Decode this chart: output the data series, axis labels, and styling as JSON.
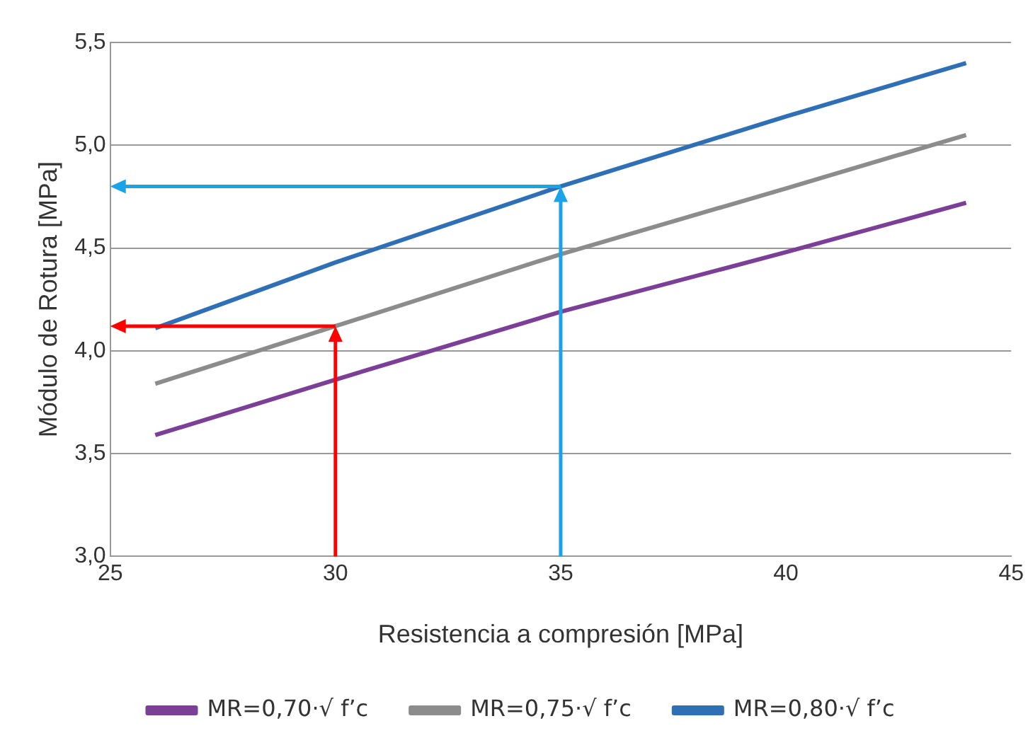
{
  "chart_data": {
    "type": "line",
    "xlabel": "Resistencia a compresión [MPa]",
    "ylabel": "Módulo de Rotura [MPa]",
    "x": [
      26,
      30,
      35,
      40,
      44
    ],
    "series": [
      {
        "name": "MR=0,70·√ f’c",
        "color": "#7b3f98",
        "values": [
          3.59,
          3.86,
          4.19,
          4.48,
          4.72
        ]
      },
      {
        "name": "MR=0,75·√ f’c",
        "color": "#8c8c8c",
        "values": [
          3.84,
          4.12,
          4.47,
          4.79,
          5.05
        ]
      },
      {
        "name": "MR=0,80·√ f’c",
        "color": "#2e6fb5",
        "values": [
          4.11,
          4.43,
          4.8,
          5.14,
          5.4
        ]
      }
    ],
    "xlim": [
      25,
      45
    ],
    "xticks": [
      25,
      30,
      35,
      40,
      45
    ],
    "ylim": [
      3,
      5.5
    ],
    "yticks": [
      {
        "value": 3,
        "label": "3,0"
      },
      {
        "value": 3.5,
        "label": "3,5"
      },
      {
        "value": 4,
        "label": "4,0"
      },
      {
        "value": 4.5,
        "label": "4,5"
      },
      {
        "value": 5,
        "label": "5,0"
      },
      {
        "value": 5.5,
        "label": "5,5"
      }
    ],
    "grid": "y",
    "legend": "bottom",
    "marker": "none"
  }
}
